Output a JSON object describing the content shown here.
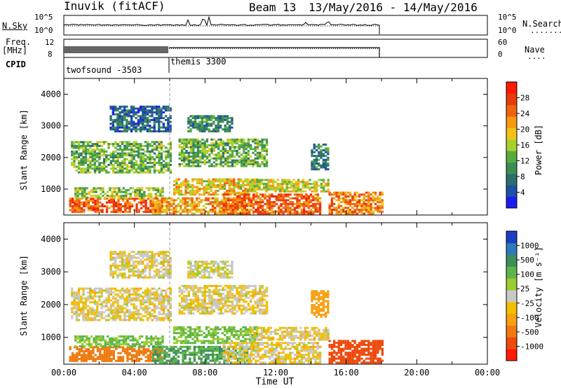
{
  "header": {
    "station": "Inuvik (fitACF)",
    "beam": "Beam 13",
    "date_range": "13/May/2016 - 14/May/2016"
  },
  "nsky_panel": {
    "label_left": "N.Sky",
    "left_ticks": [
      "10^5",
      "10^0"
    ],
    "right_ticks": [
      "10^5",
      "10^0"
    ],
    "label_right": "N.Search",
    "right_dots": "........"
  },
  "freq_panel": {
    "label_left_1": "Freq.",
    "label_left_2": "[MHz]",
    "left_ticks": [
      "12",
      "8"
    ],
    "right_ticks": [
      "60",
      "0"
    ],
    "label_right": "Nave",
    "right_dots": "...."
  },
  "cpid": {
    "label": "CPID",
    "modes": [
      "twofsound -3503",
      "themis 3300"
    ]
  },
  "chart_data": [
    {
      "type": "heatmap",
      "name": "power",
      "ylabel": "Slant Range [km]",
      "yticks": [
        1000,
        2000,
        3000,
        4000
      ],
      "ylim": [
        180,
        4500
      ],
      "xlim": [
        0,
        24
      ],
      "colorbar_label": "Power [dB]",
      "colorbar_ticks": [
        "4",
        "8",
        "12",
        "16",
        "20",
        "24",
        "28"
      ],
      "colorbar_colors": [
        "#1c1cf0",
        "#1f4fa6",
        "#2a6f6a",
        "#3e8e54",
        "#58ac3e",
        "#a8d12e",
        "#f2c21a",
        "#f59a12",
        "#f0640f",
        "#e93a0c",
        "#ff1a00"
      ],
      "bands": [
        {
          "t0": 0.3,
          "t1": 5.6,
          "r0": 250,
          "r1": 700,
          "p": 26
        },
        {
          "t0": 0.6,
          "t1": 5.6,
          "r0": 700,
          "r1": 1050,
          "p": 16
        },
        {
          "t0": 0.4,
          "t1": 6.0,
          "r0": 1500,
          "r1": 2500,
          "p": 14
        },
        {
          "t0": 2.6,
          "t1": 6.0,
          "r0": 2800,
          "r1": 3600,
          "p": 8
        },
        {
          "t0": 5.0,
          "t1": 10.5,
          "r0": 200,
          "r1": 700,
          "p": 22
        },
        {
          "t0": 6.2,
          "t1": 11.0,
          "r0": 800,
          "r1": 1300,
          "p": 20
        },
        {
          "t0": 6.5,
          "t1": 11.5,
          "r0": 1700,
          "r1": 2600,
          "p": 14
        },
        {
          "t0": 7.0,
          "t1": 9.5,
          "r0": 2800,
          "r1": 3300,
          "p": 10
        },
        {
          "t0": 9.0,
          "t1": 14.5,
          "r0": 200,
          "r1": 850,
          "p": 26
        },
        {
          "t0": 10.5,
          "t1": 15.0,
          "r0": 900,
          "r1": 1300,
          "p": 18
        },
        {
          "t0": 14.0,
          "t1": 15.0,
          "r0": 1600,
          "r1": 2400,
          "p": 10
        },
        {
          "t0": 15.0,
          "t1": 18.0,
          "r0": 200,
          "r1": 900,
          "p": 24
        }
      ]
    },
    {
      "type": "heatmap",
      "name": "velocity",
      "ylabel": "Slant Range [km]",
      "yticks": [
        1000,
        2000,
        3000,
        4000
      ],
      "ylim": [
        180,
        4500
      ],
      "xlim": [
        0,
        24
      ],
      "colorbar_label": "Velocity [m s⁻¹]",
      "colorbar_ticks": [
        "1000",
        "500",
        "100",
        "25",
        "-25",
        "-100",
        "-500",
        "-1000"
      ],
      "colorbar_colors": [
        "#1b3fc0",
        "#2f7ab8",
        "#3c8f5a",
        "#5fb548",
        "#9acd32",
        "#c8c8c8",
        "#f2c000",
        "#f7a012",
        "#f07a10",
        "#ee4a0c",
        "#ff1a00"
      ],
      "bands": [
        {
          "t0": 0.3,
          "t1": 5.6,
          "r0": 250,
          "r1": 700,
          "v": -150
        },
        {
          "t0": 0.6,
          "t1": 5.6,
          "r0": 700,
          "r1": 1050,
          "v": 60
        },
        {
          "t0": 0.4,
          "t1": 6.0,
          "r0": 1500,
          "r1": 2500,
          "v": 0
        },
        {
          "t0": 2.6,
          "t1": 6.0,
          "r0": 2800,
          "r1": 3600,
          "v": 0
        },
        {
          "t0": 5.0,
          "t1": 10.5,
          "r0": 200,
          "r1": 700,
          "v": 100
        },
        {
          "t0": 6.2,
          "t1": 11.0,
          "r0": 800,
          "r1": 1300,
          "v": 60
        },
        {
          "t0": 6.5,
          "t1": 11.5,
          "r0": 1700,
          "r1": 2600,
          "v": 0
        },
        {
          "t0": 7.0,
          "t1": 9.5,
          "r0": 2800,
          "r1": 3300,
          "v": 10
        },
        {
          "t0": 9.0,
          "t1": 14.5,
          "r0": 200,
          "r1": 850,
          "v": 0
        },
        {
          "t0": 10.5,
          "t1": 15.0,
          "r0": 900,
          "r1": 1300,
          "v": 0
        },
        {
          "t0": 14.0,
          "t1": 15.0,
          "r0": 1600,
          "r1": 2400,
          "v": -60
        },
        {
          "t0": 15.0,
          "t1": 18.0,
          "r0": 200,
          "r1": 900,
          "v": -300
        }
      ]
    }
  ],
  "xaxis": {
    "ticks": [
      "00:00",
      "04:00",
      "08:00",
      "12:00",
      "16:00",
      "20:00",
      "00:00"
    ],
    "label": "Time UT"
  }
}
